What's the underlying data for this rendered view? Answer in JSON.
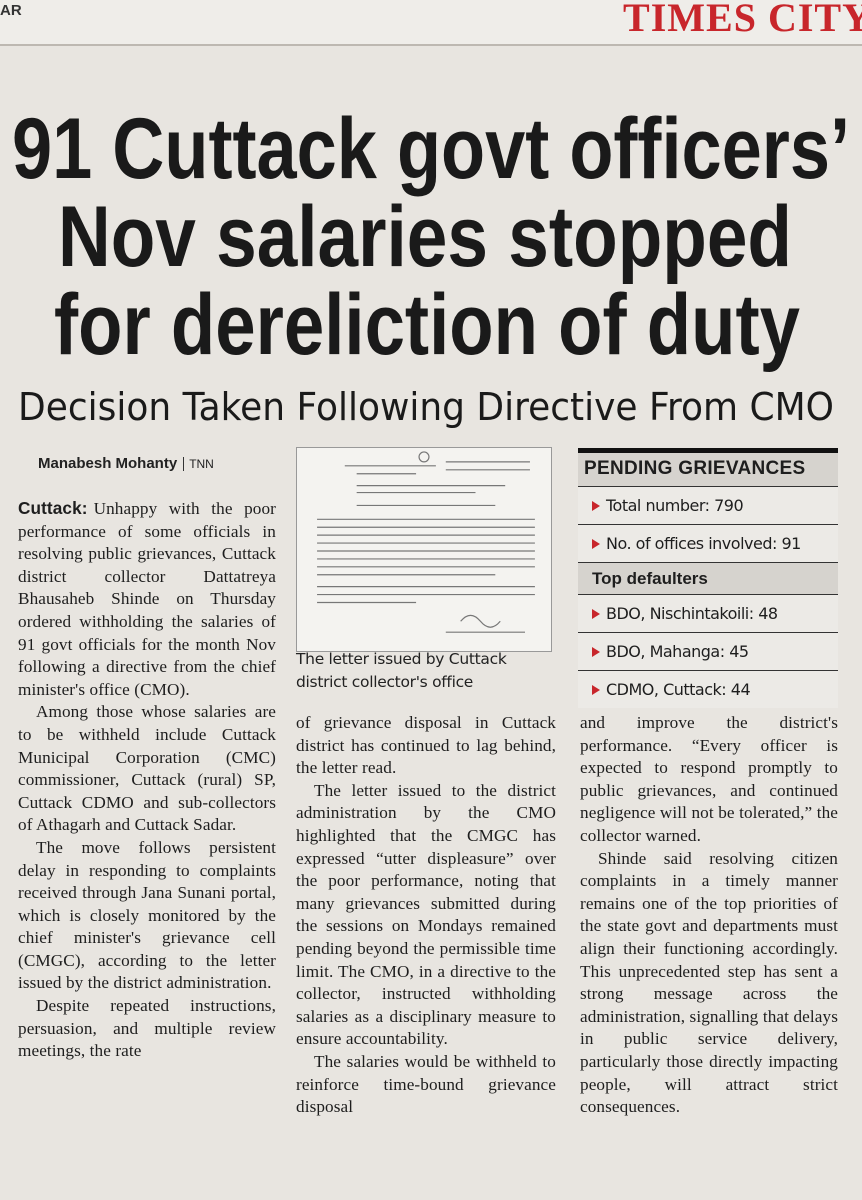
{
  "header": {
    "edge_text": "AR",
    "section": "TIMES CITY"
  },
  "headline": {
    "lines": [
      "91 Cuttack govt officers’",
      "Nov salaries stopped",
      "for dereliction of duty"
    ]
  },
  "subheadline": "Decision Taken Following Directive From CMO",
  "byline": {
    "author": "Manabesh Mohanty",
    "agency": "TNN"
  },
  "image": {
    "caption": "The letter issued by Cuttack district collector's office"
  },
  "sidebar": {
    "title": "PENDING GRIEVANCES",
    "items": [
      "Total number: 790",
      "No. of offices involved: 91"
    ],
    "subtitle": "Top defaulters",
    "defaulters": [
      "BDO, Nischintakoili: 48",
      "BDO, Mahanga: 45",
      "CDMO, Cuttack: 44"
    ]
  },
  "article": {
    "dateline": "Cuttack:",
    "columns": [
      [
        "Unhappy with the poor performance of some officials in resolving public grievances, Cuttack district collector Dattatreya Bhausaheb Shinde on Thursday ordered withholding the salaries of 91 govt officials for the month Nov following a directive from the chief minister's office (CMO).",
        "Among those whose salaries are to be withheld include Cuttack Municipal Corporation (CMC) commissioner, Cuttack (rural) SP, Cuttack CDMO and sub-collectors of Athagarh and Cuttack Sadar.",
        "The move follows persistent delay in responding to complaints received through Jana Sunani portal, which is closely monitored by the chief minister's grievance cell (CMGC), according to the letter issued by the district administration.",
        "Despite repeated instructions, persuasion, and multiple review meetings, the rate"
      ],
      [
        "of grievance disposal in Cuttack district has continued to lag behind, the letter read.",
        "The letter issued to the district administration by the CMO highlighted that the CMGC has expressed “utter displeasure” over the poor performance, noting that many grievances submitted during the sessions on Mondays remained pending beyond the permissible time limit. The CMO, in a directive to the collector, instructed withholding salaries as a disciplinary measure to ensure accountability.",
        "The salaries would be withheld to reinforce time-bound grievance disposal"
      ],
      [
        "and improve the district's performance. “Every officer is expected to respond promptly to public grievances, and continued negligence will not be tolerated,” the collector warned.",
        "Shinde said resolving citizen complaints in a timely manner remains one of the top priorities of the state govt and departments must align their functioning accordingly. This unprecedented step has sent a strong message across the administration, signalling that delays in public service delivery, particularly those directly impacting people, will attract strict consequences."
      ]
    ]
  }
}
